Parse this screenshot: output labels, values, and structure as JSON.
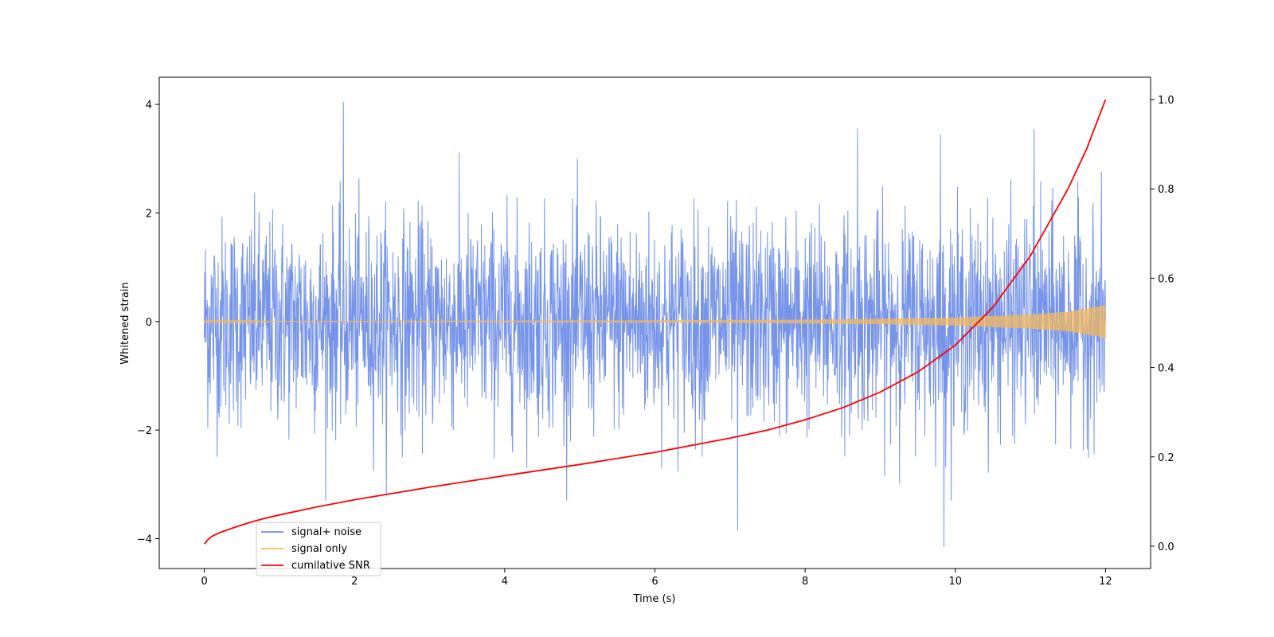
{
  "chart_data": {
    "type": "line",
    "xlabel": "Time (s)",
    "ylabel": "Whitened strain",
    "xlim": [
      -0.6,
      12.6
    ],
    "ylim_left": [
      -4.55,
      4.5
    ],
    "ylim_right": [
      -0.05,
      1.05
    ],
    "x_ticks": [
      0,
      2,
      4,
      6,
      8,
      10,
      12
    ],
    "y_ticks_left": [
      -4,
      -2,
      0,
      2,
      4
    ],
    "y_ticks_right": [
      0.0,
      0.2,
      0.4,
      0.6,
      0.8,
      1.0
    ],
    "x_tick_labels": [
      "0",
      "2",
      "4",
      "6",
      "8",
      "10",
      "12"
    ],
    "y_tick_labels_left": [
      "−4",
      "−2",
      "0",
      "2",
      "4"
    ],
    "y_tick_labels_right": [
      "0.0",
      "0.2",
      "0.4",
      "0.6",
      "0.8",
      "1.0"
    ],
    "grid": false,
    "legend_position": "lower-left",
    "series": [
      {
        "name": "signal+ noise",
        "axis": "left",
        "color": "#6f8ee8",
        "description_values": {
          "x_start": 0,
          "x_end": 12,
          "typical_range": [
            -2.0,
            2.0
          ],
          "max": 4.05,
          "min": -4.15
        },
        "notable_peaks": [
          [
            1.85,
            4.05
          ],
          [
            9.85,
            -4.15
          ],
          [
            7.1,
            -3.85
          ],
          [
            8.7,
            3.55
          ],
          [
            11.05,
            3.55
          ],
          [
            9.8,
            3.45
          ]
        ]
      },
      {
        "name": "signal only",
        "axis": "left",
        "color": "#f5b95c",
        "envelope": [
          [
            0,
            0.01
          ],
          [
            2,
            0.012
          ],
          [
            4,
            0.016
          ],
          [
            6,
            0.022
          ],
          [
            8,
            0.035
          ],
          [
            9,
            0.05
          ],
          [
            10,
            0.075
          ],
          [
            11,
            0.13
          ],
          [
            11.5,
            0.18
          ],
          [
            12,
            0.3
          ]
        ]
      },
      {
        "name": "cumilative SNR",
        "axis": "right",
        "color": "#ff0000",
        "x": [
          0,
          0.05,
          0.1,
          0.2,
          0.4,
          0.6,
          0.8,
          1,
          1.5,
          2,
          3,
          4,
          5,
          6,
          7,
          7.5,
          8,
          8.5,
          9,
          9.5,
          10,
          10.5,
          11,
          11.25,
          11.5,
          11.75,
          12
        ],
        "y": [
          0.005,
          0.015,
          0.022,
          0.03,
          0.042,
          0.053,
          0.062,
          0.07,
          0.088,
          0.104,
          0.132,
          0.158,
          0.183,
          0.21,
          0.242,
          0.26,
          0.283,
          0.31,
          0.345,
          0.39,
          0.45,
          0.535,
          0.65,
          0.725,
          0.8,
          0.89,
          1.0
        ]
      }
    ]
  }
}
